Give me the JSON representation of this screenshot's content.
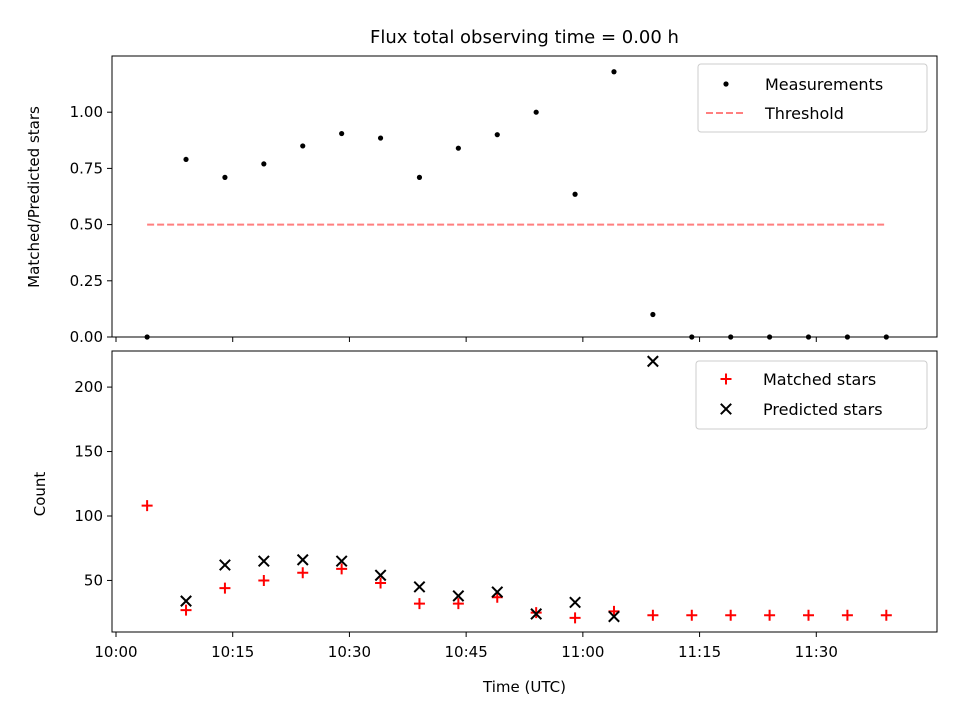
{
  "chart_data": [
    {
      "type": "scatter",
      "title": "Flux total observing time = 0.00 h",
      "xlabel": "",
      "ylabel": "Matched/Predicted stars",
      "ylim": [
        0,
        1.25
      ],
      "yticks": [
        "0.00",
        "0.25",
        "0.50",
        "0.75",
        "1.00"
      ],
      "legend_position": "top-right",
      "series": [
        {
          "name": "Measurements",
          "marker": "dot",
          "color": "#000000",
          "x": [
            "10:04",
            "10:09",
            "10:14",
            "10:19",
            "10:24",
            "10:29",
            "10:34",
            "10:39",
            "10:44",
            "10:49",
            "10:54",
            "10:59",
            "11:04",
            "11:09",
            "11:14",
            "11:19",
            "11:24",
            "11:29",
            "11:34",
            "11:39"
          ],
          "values": [
            0.0,
            0.79,
            0.71,
            0.77,
            0.85,
            0.905,
            0.885,
            0.71,
            0.84,
            0.9,
            1.0,
            0.635,
            1.18,
            0.1,
            0.0,
            0.0,
            0.0,
            0.0,
            0.0,
            0.0
          ]
        },
        {
          "name": "Threshold",
          "style": "dashed-line",
          "color": "#ff7f7f",
          "x": [
            "10:04",
            "11:39"
          ],
          "values": [
            0.5,
            0.5
          ]
        }
      ]
    },
    {
      "type": "scatter",
      "title": "",
      "xlabel": "Time (UTC)",
      "ylabel": "Count",
      "ylim": [
        10,
        228
      ],
      "yticks": [
        "50",
        "100",
        "150",
        "200"
      ],
      "xticks": [
        "10:00",
        "10:15",
        "10:30",
        "10:45",
        "11:00",
        "11:15",
        "11:30"
      ],
      "xlim": [
        "10:00",
        "11:45"
      ],
      "legend_position": "top-right",
      "series": [
        {
          "name": "Matched stars",
          "marker": "plus",
          "color": "#ff0000",
          "x": [
            "10:04",
            "10:09",
            "10:14",
            "10:19",
            "10:24",
            "10:29",
            "10:34",
            "10:39",
            "10:44",
            "10:49",
            "10:54",
            "10:59",
            "11:04",
            "11:09",
            "11:14",
            "11:19",
            "11:24",
            "11:29",
            "11:34",
            "11:39"
          ],
          "values": [
            108,
            27,
            44,
            50,
            56,
            59,
            48,
            32,
            32,
            37,
            25,
            21,
            26,
            23,
            23,
            23,
            23,
            23,
            23,
            23
          ]
        },
        {
          "name": "Predicted stars",
          "marker": "x",
          "color": "#000000",
          "x": [
            "10:09",
            "10:14",
            "10:19",
            "10:24",
            "10:29",
            "10:34",
            "10:39",
            "10:44",
            "10:49",
            "10:54",
            "10:59",
            "11:04",
            "11:09"
          ],
          "values": [
            34,
            62,
            65,
            66,
            65,
            54,
            45,
            38,
            41,
            24,
            33,
            22,
            220
          ]
        }
      ]
    }
  ]
}
